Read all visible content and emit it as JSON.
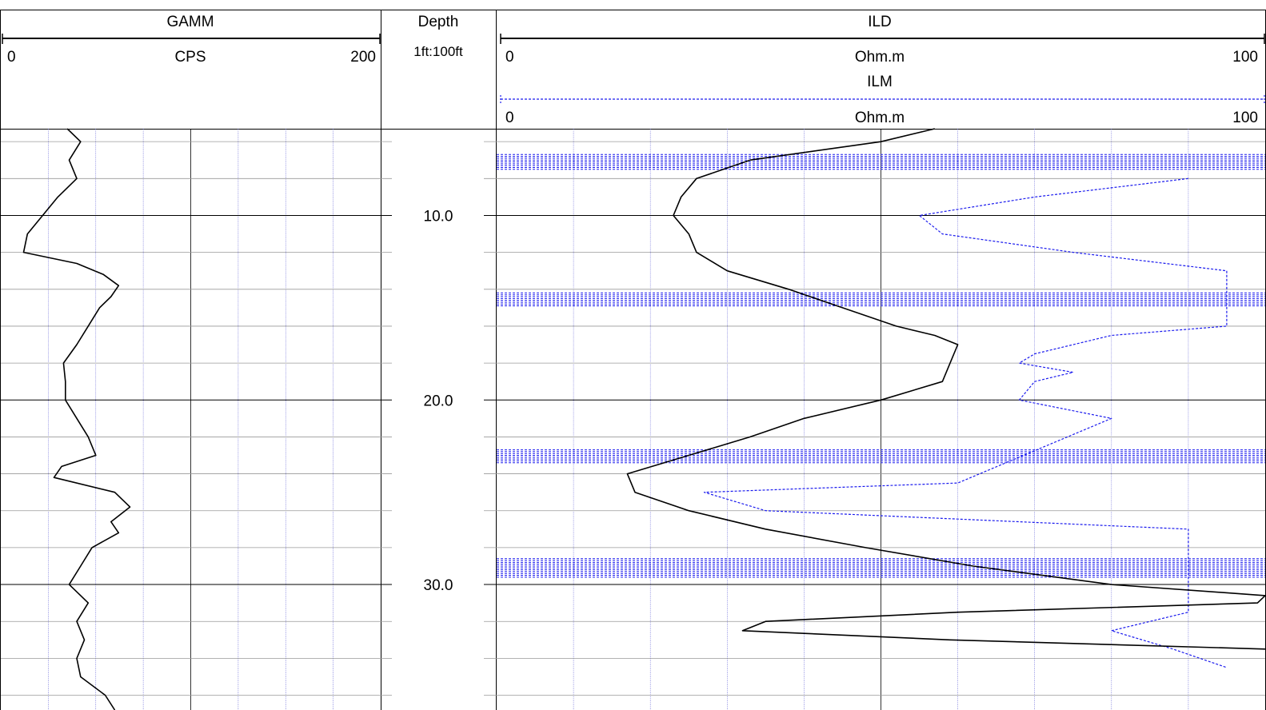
{
  "chart_data": [
    {
      "type": "line",
      "track": "gamma",
      "title": "GAMM",
      "unit": "CPS",
      "xlim": [
        0,
        200
      ],
      "xlim_labels": [
        "0",
        "200"
      ],
      "depth_range": [
        5.3,
        36.8
      ],
      "series": [
        {
          "name": "GAMM",
          "color": "#000000",
          "depth": [
            5.3,
            6.0,
            7.0,
            8.0,
            9.0,
            10.0,
            11.0,
            12.0,
            12.6,
            13.2,
            13.8,
            14.4,
            15.0,
            16.0,
            17.0,
            18.0,
            19.0,
            20.0,
            21.0,
            22.0,
            23.0,
            23.6,
            24.2,
            25.0,
            25.8,
            26.6,
            27.2,
            28.0,
            29.0,
            30.0,
            31.0,
            32.0,
            33.0,
            34.0,
            35.0,
            36.0,
            36.8
          ],
          "value": [
            35,
            42,
            36,
            40,
            30,
            22,
            14,
            12,
            40,
            54,
            62,
            58,
            52,
            46,
            40,
            33,
            34,
            34,
            40,
            46,
            50,
            32,
            28,
            60,
            68,
            58,
            62,
            48,
            42,
            36,
            46,
            40,
            44,
            40,
            42,
            55,
            60
          ]
        }
      ]
    },
    {
      "type": "table",
      "track": "depth",
      "title": "Depth",
      "scale": "1ft:100ft",
      "tick_labels": [
        "10.0",
        "20.0",
        "30.0"
      ],
      "ticks": [
        10.0,
        20.0,
        30.0
      ]
    },
    {
      "type": "line",
      "track": "resistivity",
      "xlim": [
        0,
        100
      ],
      "xlim_labels": [
        "0",
        "100"
      ],
      "depth_range": [
        5.3,
        36.8
      ],
      "curve_headers": [
        {
          "name": "ILD",
          "unit": "Ohm.m",
          "style": "solid"
        },
        {
          "name": "ILM",
          "unit": "Ohm.m",
          "style": "dashed"
        }
      ],
      "series": [
        {
          "name": "ILD",
          "color": "#000000",
          "style": "solid",
          "depth": [
            5.3,
            6.0,
            7.0,
            8.0,
            9.0,
            10.0,
            11.0,
            12.0,
            13.0,
            14.0,
            15.0,
            16.0,
            16.5,
            17.0,
            18.0,
            19.0,
            20.0,
            21.0,
            22.0,
            23.0,
            24.0,
            25.0,
            26.0,
            27.0,
            28.0,
            29.0,
            30.0,
            30.6,
            31.0,
            31.5,
            32.0,
            32.5,
            33.0,
            33.5
          ],
          "value": [
            57,
            50,
            33,
            26,
            24,
            23,
            25,
            26,
            30,
            38,
            45,
            52,
            57,
            60,
            59,
            58,
            50,
            40,
            33,
            25,
            17,
            18,
            25,
            35,
            48,
            62,
            80,
            100,
            99,
            60,
            35,
            32,
            59,
            100
          ]
        },
        {
          "name": "ILM",
          "color": "#1a1aee",
          "style": "dashed",
          "depth": [
            8.0,
            9.0,
            10.0,
            11.0,
            12.0,
            13.0,
            16.0,
            16.5,
            17.5,
            18.0,
            18.5,
            19.0,
            20.0,
            21.0,
            24.5,
            25.0,
            26.0,
            27.0,
            31.5,
            32.5,
            33.5,
            34.5
          ],
          "value": [
            90,
            70,
            55,
            58,
            75,
            95,
            95,
            80,
            70,
            68,
            75,
            70,
            68,
            80,
            60,
            27,
            35,
            90,
            90,
            80,
            88,
            95
          ]
        }
      ],
      "dense_bands": [
        {
          "from": 6.7,
          "to": 7.5
        },
        {
          "from": 14.2,
          "to": 14.9
        },
        {
          "from": 22.7,
          "to": 23.4
        },
        {
          "from": 28.6,
          "to": 29.6
        }
      ]
    }
  ]
}
